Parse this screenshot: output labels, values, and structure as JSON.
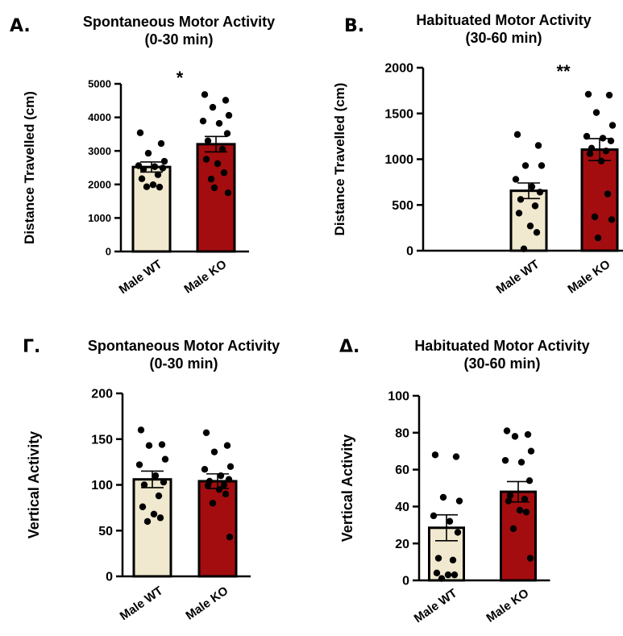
{
  "panels": [
    {
      "letter": "A.",
      "title_lines": [
        "Spontaneous Motor Activity",
        "(0-30 min)"
      ],
      "significance": "*"
    },
    {
      "letter": "B.",
      "title_lines": [
        "Habituated Motor Activity",
        "(30-60 min)"
      ],
      "significance": "**"
    },
    {
      "letter": "Γ.",
      "title_lines": [
        "Spontaneous Motor Activity",
        "(0-30 min)"
      ],
      "significance": ""
    },
    {
      "letter": "Δ.",
      "title_lines": [
        "Habituated Motor Activity",
        "(30-60 min)"
      ],
      "significance": ""
    }
  ],
  "colors": {
    "wt_fill": "#f0e9cf",
    "ko_fill": "#a30d0f",
    "stroke": "#000000"
  },
  "chart_data": [
    {
      "type": "bar",
      "title": "Spontaneous Motor Activity (0-30 min)",
      "ylabel": "Distance Travelled (cm)",
      "categories": [
        "Male WT",
        "Male KO"
      ],
      "ylim": [
        0,
        5000
      ],
      "yticks": [
        0,
        1000,
        2000,
        3000,
        4000,
        5000
      ],
      "values": [
        2520,
        3200
      ],
      "sem": [
        150,
        230
      ],
      "points": [
        [
          3540,
          3220,
          2930,
          2690,
          2560,
          2530,
          2490,
          2450,
          2290,
          2170,
          1990,
          1920,
          1930
        ],
        [
          4680,
          4510,
          4300,
          4060,
          3890,
          3820,
          3520,
          3300,
          3050,
          2750,
          2620,
          2350,
          2160,
          1750,
          1900
        ]
      ]
    },
    {
      "type": "bar",
      "title": "Habituated Motor Activity (30-60 min)",
      "ylabel": "Distance Travelled (cm)",
      "categories": [
        "Male WT",
        "Male KO"
      ],
      "ylim": [
        0,
        2000
      ],
      "yticks": [
        0,
        500,
        1000,
        1500,
        2000
      ],
      "values": [
        655,
        1105
      ],
      "sem": [
        85,
        120
      ],
      "points": [
        [
          1270,
          1150,
          930,
          930,
          780,
          700,
          640,
          560,
          490,
          410,
          270,
          200,
          20
        ],
        [
          1710,
          1700,
          1510,
          1370,
          1250,
          1230,
          1200,
          1120,
          1090,
          1060,
          980,
          620,
          370,
          340,
          140
        ]
      ]
    },
    {
      "type": "bar",
      "title": "Spontaneous Motor Activity (0-30 min)",
      "ylabel": "Vertical Activity",
      "categories": [
        "Male WT",
        "Male KO"
      ],
      "ylim": [
        0,
        200
      ],
      "yticks": [
        0,
        50,
        100,
        150,
        200
      ],
      "values": [
        106,
        104
      ],
      "sem": [
        9,
        8
      ],
      "points": [
        [
          160,
          144,
          143,
          128,
          122,
          110,
          103,
          100,
          88,
          76,
          68,
          64,
          60
        ],
        [
          157,
          143,
          136,
          120,
          117,
          110,
          106,
          104,
          100,
          99,
          95,
          90,
          80,
          43
        ]
      ]
    },
    {
      "type": "bar",
      "title": "Habituated Motor Activity (30-60 min)",
      "ylabel": "Vertical Activity",
      "categories": [
        "Male WT",
        "Male KO"
      ],
      "ylim": [
        0,
        100
      ],
      "yticks": [
        0,
        20,
        40,
        60,
        80,
        100
      ],
      "values": [
        28.5,
        48
      ],
      "sem": [
        7,
        5.5
      ],
      "points": [
        [
          68,
          67,
          45,
          43,
          35,
          32,
          26,
          12,
          11,
          4,
          3,
          3,
          1
        ],
        [
          81,
          79,
          78,
          70,
          65,
          64,
          54,
          46,
          44,
          43,
          38,
          37,
          28,
          12
        ]
      ]
    }
  ]
}
